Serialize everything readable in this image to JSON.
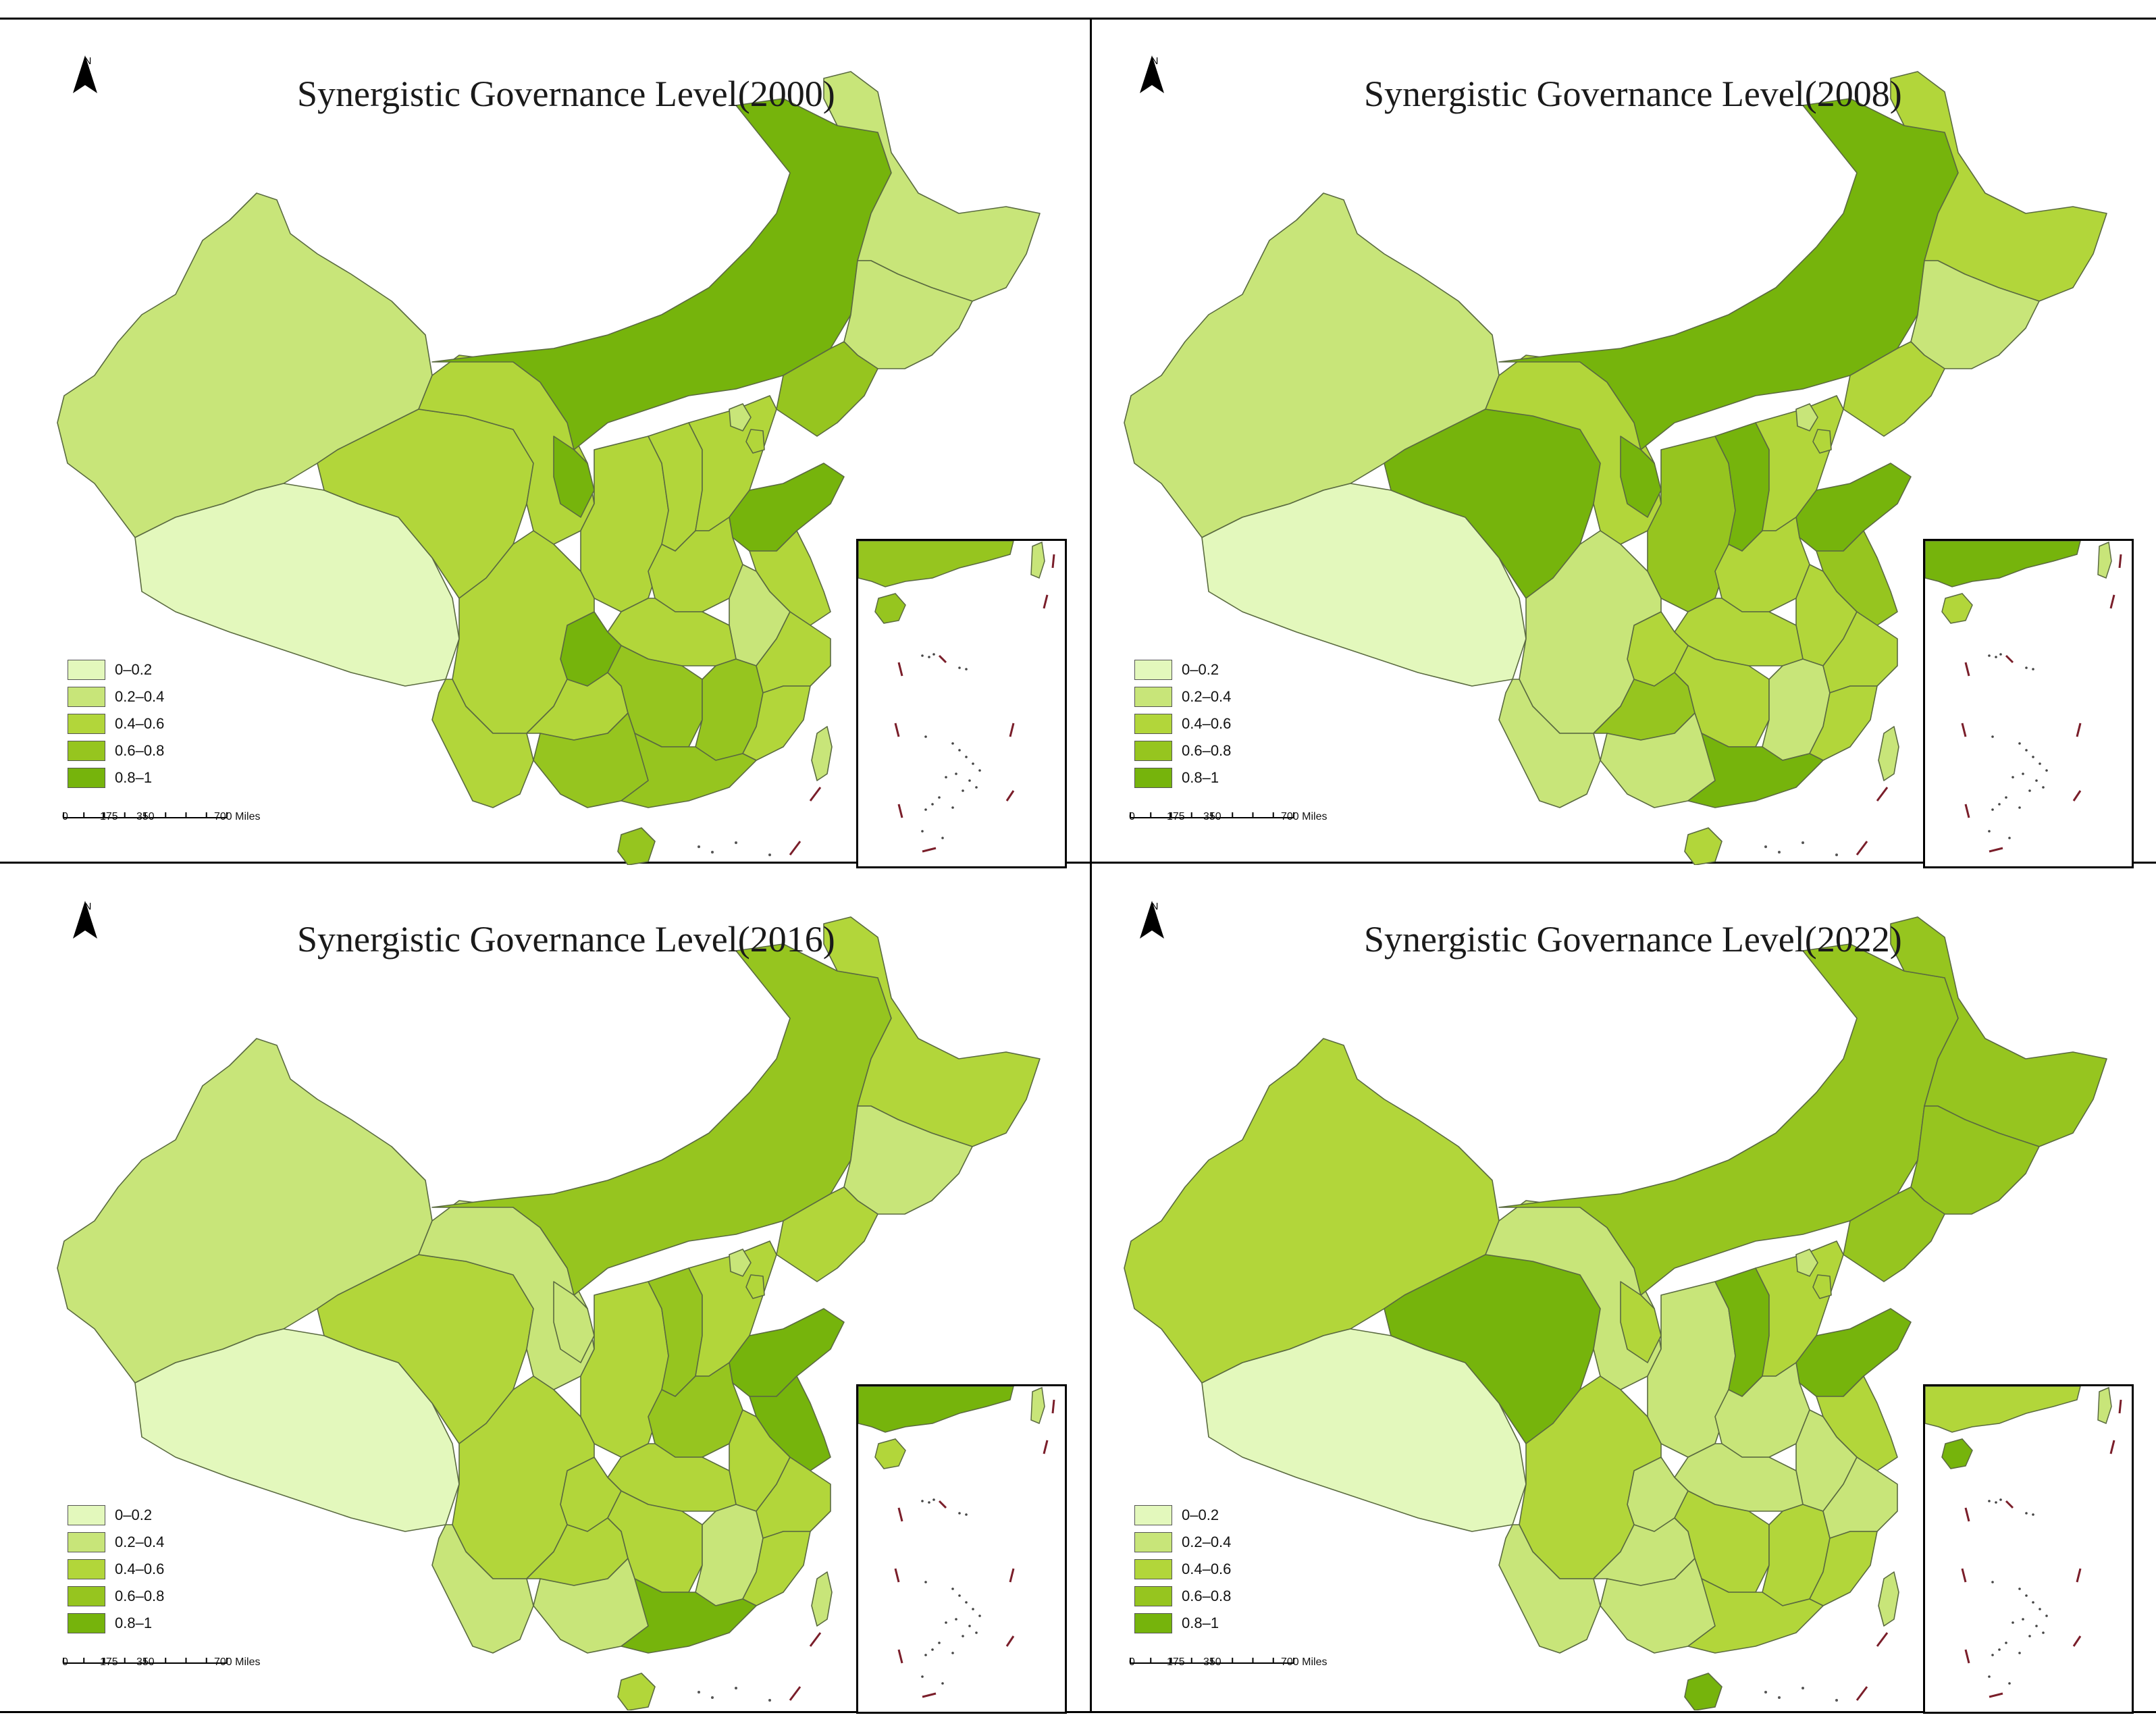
{
  "colors": {
    "c0": "#e3f8bc",
    "c1": "#c8e579",
    "c2": "#b2d63a",
    "c3": "#96c51f",
    "c4": "#76b40c",
    "border": "#5a6a40",
    "dash": "#7a1e2a"
  },
  "legend": {
    "items": [
      {
        "label": "0–0.2",
        "color": "#e3f8bc"
      },
      {
        "label": "0.2–0.4",
        "color": "#c8e579"
      },
      {
        "label": "0.4–0.6",
        "color": "#b2d63a"
      },
      {
        "label": "0.6–0.8",
        "color": "#96c51f"
      },
      {
        "label": "0.8–1",
        "color": "#76b40c"
      }
    ]
  },
  "north_label": "N",
  "scale": {
    "ticks": [
      "0",
      "175",
      "350",
      "700 Miles"
    ]
  },
  "panels": [
    {
      "title": "Synergistic Governance Level(2000)",
      "regions": {
        "xinjiang": 1,
        "tibet": 0,
        "qinghai": 2,
        "gansu": 2,
        "inner_mongolia": 4,
        "heilongjiang": 1,
        "jilin": 1,
        "liaoning": 3,
        "ningxia": 4,
        "shaanxi": 2,
        "shanxi": 2,
        "hebei": 2,
        "beijing": 1,
        "tianjin": 2,
        "shandong": 4,
        "henan": 2,
        "jiangsu": 2,
        "anhui": 1,
        "hubei": 2,
        "chongqing": 4,
        "sichuan": 2,
        "yunnan": 2,
        "guizhou": 2,
        "hunan": 3,
        "jiangxi": 3,
        "zhejiang": 2,
        "fujian": 2,
        "guangxi": 3,
        "guangdong": 3,
        "hainan": 3,
        "taiwan": 1
      }
    },
    {
      "title": "Synergistic Governance Level(2008)",
      "regions": {
        "xinjiang": 1,
        "tibet": 0,
        "qinghai": 4,
        "gansu": 2,
        "inner_mongolia": 4,
        "heilongjiang": 2,
        "jilin": 1,
        "liaoning": 2,
        "ningxia": 4,
        "shaanxi": 3,
        "shanxi": 4,
        "hebei": 2,
        "beijing": 1,
        "tianjin": 2,
        "shandong": 4,
        "henan": 2,
        "jiangsu": 3,
        "anhui": 2,
        "hubei": 2,
        "chongqing": 2,
        "sichuan": 1,
        "yunnan": 1,
        "guizhou": 3,
        "hunan": 2,
        "jiangxi": 1,
        "zhejiang": 2,
        "fujian": 2,
        "guangxi": 1,
        "guangdong": 4,
        "hainan": 2,
        "taiwan": 1
      }
    },
    {
      "title": "Synergistic Governance Level(2016)",
      "regions": {
        "xinjiang": 1,
        "tibet": 0,
        "qinghai": 2,
        "gansu": 1,
        "inner_mongolia": 3,
        "heilongjiang": 2,
        "jilin": 1,
        "liaoning": 2,
        "ningxia": 1,
        "shaanxi": 2,
        "shanxi": 3,
        "hebei": 2,
        "beijing": 1,
        "tianjin": 2,
        "shandong": 4,
        "henan": 3,
        "jiangsu": 4,
        "anhui": 2,
        "hubei": 2,
        "chongqing": 2,
        "sichuan": 2,
        "yunnan": 1,
        "guizhou": 2,
        "hunan": 2,
        "jiangxi": 1,
        "zhejiang": 2,
        "fujian": 2,
        "guangxi": 1,
        "guangdong": 4,
        "hainan": 2,
        "taiwan": 1
      }
    },
    {
      "title": "Synergistic Governance Level(2022)",
      "regions": {
        "xinjiang": 2,
        "tibet": 0,
        "qinghai": 4,
        "gansu": 1,
        "inner_mongolia": 3,
        "heilongjiang": 3,
        "jilin": 3,
        "liaoning": 3,
        "ningxia": 2,
        "shaanxi": 1,
        "shanxi": 4,
        "hebei": 2,
        "beijing": 1,
        "tianjin": 2,
        "shandong": 4,
        "henan": 1,
        "jiangsu": 2,
        "anhui": 1,
        "hubei": 1,
        "chongqing": 1,
        "sichuan": 2,
        "yunnan": 1,
        "guizhou": 1,
        "hunan": 2,
        "jiangxi": 2,
        "zhejiang": 1,
        "fujian": 2,
        "guangxi": 1,
        "guangdong": 2,
        "hainan": 4,
        "taiwan": 1
      }
    }
  ]
}
